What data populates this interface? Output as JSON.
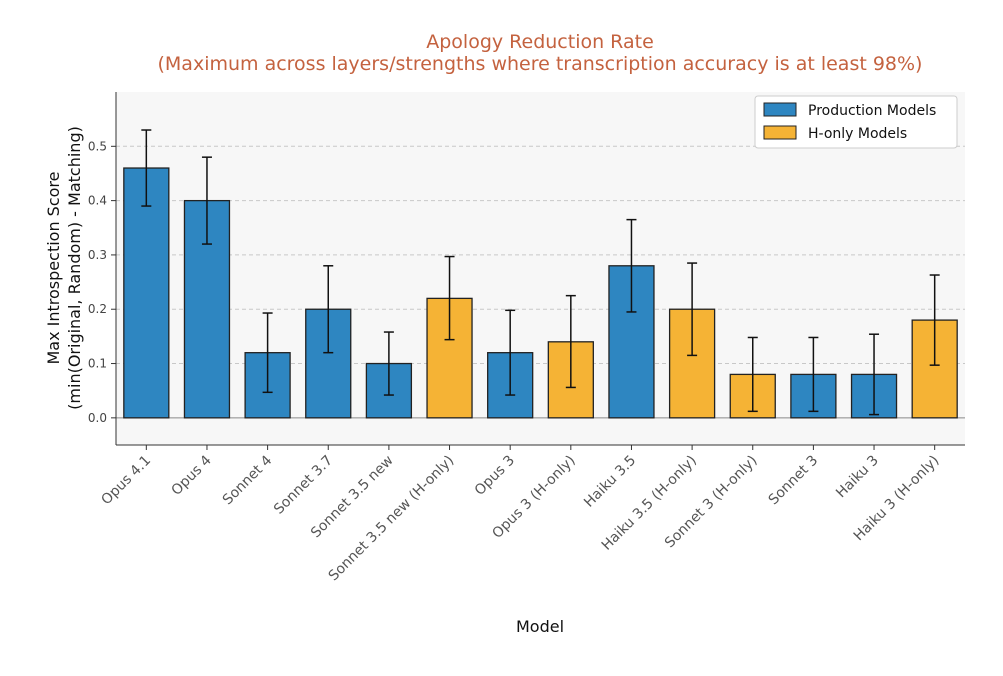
{
  "chart_data": {
    "type": "bar",
    "title": "Apology Reduction Rate",
    "subtitle": "(Maximum across layers/strengths where transcription accuracy is at least 98%)",
    "xlabel": "Model",
    "ylabel_lines": [
      "Max Introspection Score",
      "(min(Original, Random) - Matching)"
    ],
    "ylim": [
      -0.05,
      0.6
    ],
    "yticks": [
      "0.0",
      "0.1",
      "0.2",
      "0.3",
      "0.4",
      "0.5"
    ],
    "grid": "horizontal dashed",
    "legend_position": "top-right",
    "colors": {
      "production": "#2e86c1",
      "h_only": "#f5b335"
    },
    "legend": [
      {
        "label": "Production Models",
        "group": "production"
      },
      {
        "label": "H-only Models",
        "group": "h_only"
      }
    ],
    "categories": [
      "Opus 4.1",
      "Opus 4",
      "Sonnet 4",
      "Sonnet 3.7",
      "Sonnet 3.5 new",
      "Sonnet 3.5 new (H-only)",
      "Opus 3",
      "Opus 3 (H-only)",
      "Haiku 3.5",
      "Haiku 3.5 (H-only)",
      "Sonnet 3 (H-only)",
      "Sonnet 3",
      "Haiku 3",
      "Haiku 3 (H-only)"
    ],
    "groups": [
      "production",
      "production",
      "production",
      "production",
      "production",
      "h_only",
      "production",
      "h_only",
      "production",
      "h_only",
      "h_only",
      "production",
      "production",
      "h_only"
    ],
    "values": [
      0.46,
      0.4,
      0.12,
      0.2,
      0.1,
      0.22,
      0.12,
      0.14,
      0.28,
      0.2,
      0.08,
      0.08,
      0.08,
      0.18
    ],
    "error_low": [
      0.39,
      0.32,
      0.047,
      0.12,
      0.042,
      0.144,
      0.042,
      0.056,
      0.195,
      0.115,
      0.012,
      0.012,
      0.006,
      0.097
    ],
    "error_high": [
      0.53,
      0.48,
      0.193,
      0.28,
      0.158,
      0.297,
      0.198,
      0.225,
      0.365,
      0.285,
      0.148,
      0.148,
      0.154,
      0.263
    ]
  }
}
